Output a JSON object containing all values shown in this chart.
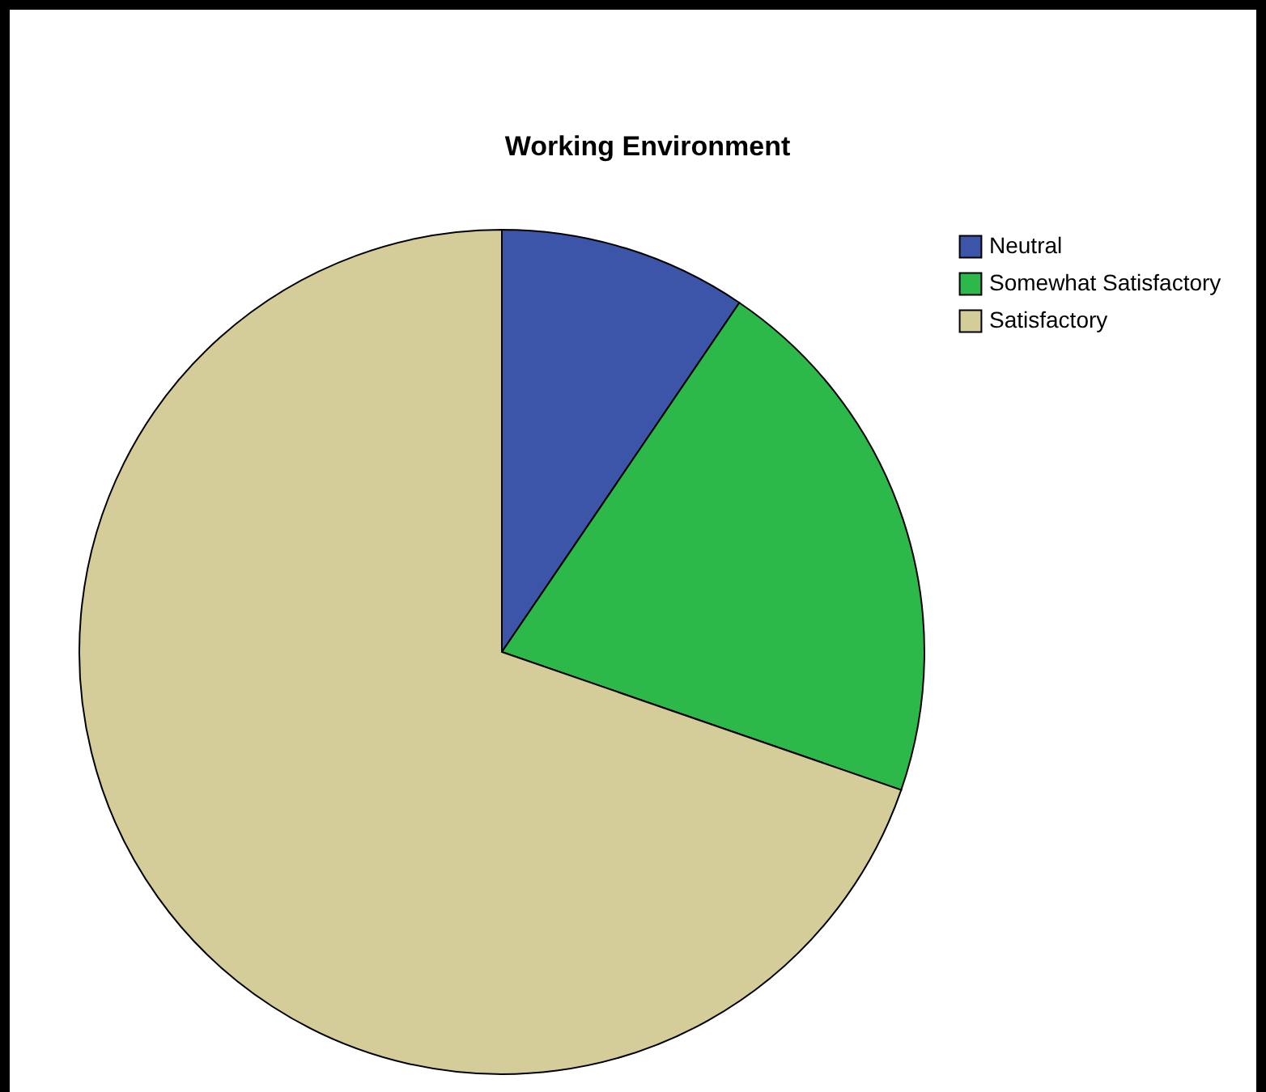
{
  "chart_data": {
    "type": "pie",
    "title": "Working Environment",
    "categories": [
      "Neutral",
      "Somewhat Satisfactory",
      "Satisfactory"
    ],
    "values": [
      9.5,
      20.8,
      69.7
    ],
    "colors": [
      "#3c55a8",
      "#2db84a",
      "#d4cd9a"
    ],
    "legend": "top right"
  }
}
